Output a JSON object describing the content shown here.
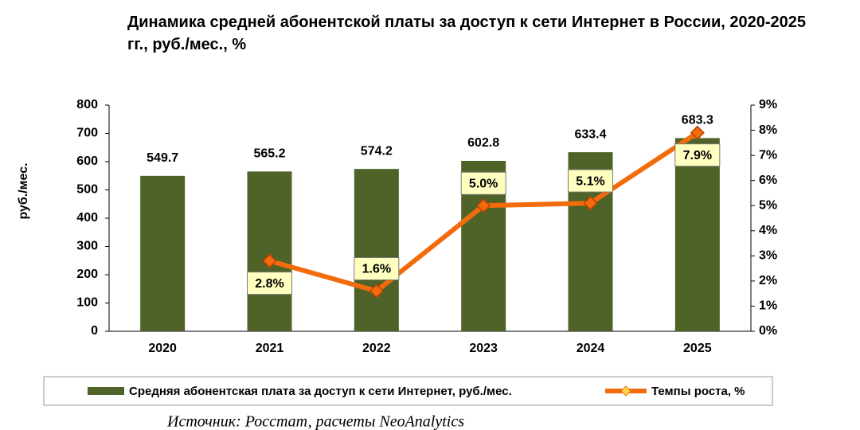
{
  "chart_data": {
    "type": "bar_line",
    "title": "Динамика средней абонентской платы за доступ к сети Интернет в России, 2020-2025 гг., руб./мес., %",
    "y_label": "руб./мес.",
    "source": "Источник: Росстат, расчеты NeoAnalytics",
    "categories": [
      "2020",
      "2021",
      "2022",
      "2023",
      "2024",
      "2025"
    ],
    "series": [
      {
        "name": "Средняя абонентская плата за доступ к сети Интернет, руб./мес.",
        "type": "bar",
        "color": "#4f6228",
        "values": [
          549.7,
          565.2,
          574.2,
          602.8,
          633.4,
          683.3
        ]
      },
      {
        "name": "Темпы роста, %",
        "type": "line",
        "axis": "y2",
        "color": "#f26c0d",
        "values": [
          null,
          2.8,
          1.6,
          5.0,
          5.1,
          7.9
        ],
        "value_labels": [
          null,
          "2.8%",
          "1.6%",
          "5.0%",
          "5.1%",
          "7.9%"
        ]
      }
    ],
    "ylim": [
      0,
      800
    ],
    "yticks": [
      0,
      100,
      200,
      300,
      400,
      500,
      600,
      700,
      800
    ],
    "y2lim": [
      0,
      9
    ],
    "y2ticks": [
      {
        "value": 0,
        "label": "0%"
      },
      {
        "value": 1,
        "label": "1%"
      },
      {
        "value": 2,
        "label": "2%"
      },
      {
        "value": 3,
        "label": "3%"
      },
      {
        "value": 4,
        "label": "4%"
      },
      {
        "value": 5,
        "label": "5%"
      },
      {
        "value": 6,
        "label": "6%"
      },
      {
        "value": 7,
        "label": "7%"
      },
      {
        "value": 8,
        "label": "8%"
      },
      {
        "value": 9,
        "label": "9%"
      }
    ]
  }
}
